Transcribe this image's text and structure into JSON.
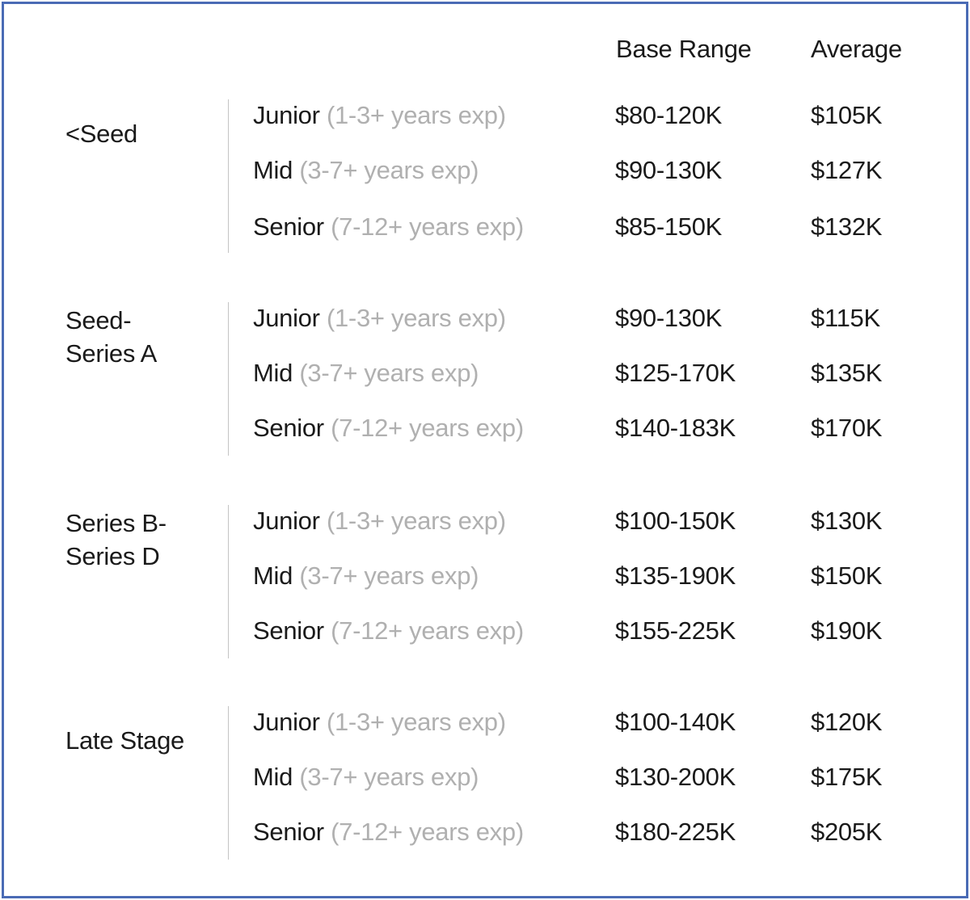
{
  "columns": {
    "range_header": "Base Range",
    "average_header": "Average"
  },
  "groups": [
    {
      "stage_line1": "<Seed",
      "stage_line2": "",
      "rows": [
        {
          "level": "Junior",
          "exp": "(1-3+ years exp)",
          "range": "$80-120K",
          "average": "$105K"
        },
        {
          "level": "Mid",
          "exp": "(3-7+ years exp)",
          "range": "$90-130K",
          "average": "$127K"
        },
        {
          "level": "Senior",
          "exp": "(7-12+ years exp)",
          "range": "$85-150K",
          "average": "$132K"
        }
      ]
    },
    {
      "stage_line1": "Seed-",
      "stage_line2": "Series A",
      "rows": [
        {
          "level": "Junior",
          "exp": "(1-3+ years exp)",
          "range": "$90-130K",
          "average": "$115K"
        },
        {
          "level": "Mid",
          "exp": "(3-7+ years exp)",
          "range": "$125-170K",
          "average": "$135K"
        },
        {
          "level": "Senior",
          "exp": "(7-12+ years exp)",
          "range": "$140-183K",
          "average": "$170K"
        }
      ]
    },
    {
      "stage_line1": "Series B-",
      "stage_line2": "Series D",
      "rows": [
        {
          "level": "Junior",
          "exp": "(1-3+ years exp)",
          "range": "$100-150K",
          "average": "$130K"
        },
        {
          "level": "Mid",
          "exp": "(3-7+ years exp)",
          "range": "$135-190K",
          "average": "$150K"
        },
        {
          "level": "Senior",
          "exp": "(7-12+ years exp)",
          "range": "$155-225K",
          "average": "$190K"
        }
      ]
    },
    {
      "stage_line1": "Late Stage",
      "stage_line2": "",
      "rows": [
        {
          "level": "Junior",
          "exp": "(1-3+ years exp)",
          "range": "$100-140K",
          "average": "$120K"
        },
        {
          "level": "Mid",
          "exp": "(3-7+ years exp)",
          "range": "$130-200K",
          "average": "$175K"
        },
        {
          "level": "Senior",
          "exp": "(7-12+ years exp)",
          "range": "$180-225K",
          "average": "$205K"
        }
      ]
    }
  ]
}
